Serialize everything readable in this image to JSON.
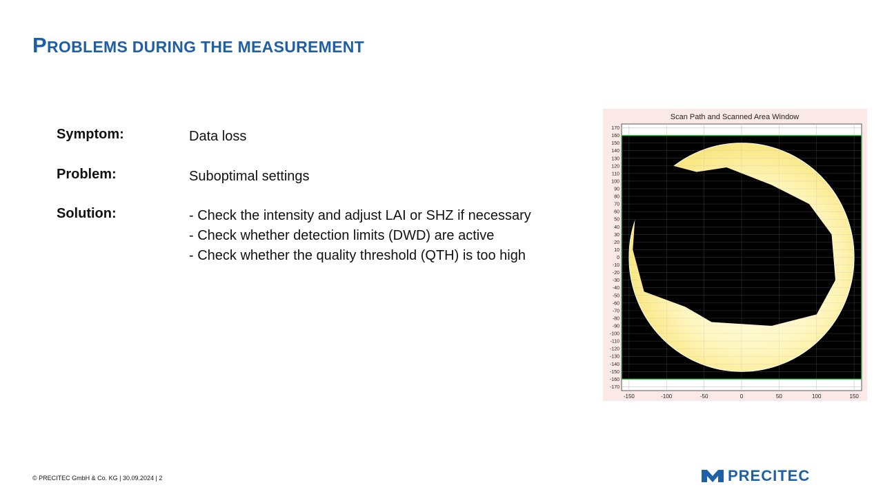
{
  "slide": {
    "title": "Problems during the measurement",
    "rows": {
      "symptom": {
        "label": "Symptom:",
        "value": "Data loss"
      },
      "problem": {
        "label": "Problem:",
        "value": "Suboptimal settings"
      },
      "solution": {
        "label": "Solution:",
        "lines": [
          "- Check the intensity and adjust LAI or SHZ if necessary",
          "- Check whether detection limits (DWD) are active",
          "- Check whether the quality threshold (QTH) is too high"
        ]
      }
    },
    "footer": "© PRECITEC GmbH & Co. KG | 30.09.2024 | 2",
    "logo_text": "PRECITEC",
    "colors": {
      "brand": "#1f5fa5",
      "plot_bg": "#fbe9e7",
      "scan_area": "#fff3a8",
      "boundary": "#2ecc40"
    }
  },
  "chart_data": {
    "type": "scatter",
    "title": "Scan Path and Scanned Area Window",
    "x_ticks": [
      "-150",
      "-100",
      "-50",
      "0",
      "50",
      "100",
      "150"
    ],
    "y_ticks": [
      "170",
      "160",
      "150",
      "140",
      "130",
      "120",
      "110",
      "100",
      "90",
      "80",
      "70",
      "60",
      "50",
      "40",
      "30",
      "20",
      "10",
      "0",
      "-10",
      "-20",
      "-30",
      "-40",
      "-50",
      "-60",
      "-70",
      "-80",
      "-90",
      "-100",
      "-110",
      "-120",
      "-130",
      "-140",
      "-150",
      "-160",
      "-170"
    ],
    "xlim": [
      -160,
      160
    ],
    "ylim": [
      -175,
      175
    ],
    "grid": true,
    "scan_window": {
      "x": [
        -160,
        160
      ],
      "y": [
        -160,
        160
      ]
    },
    "scanned_area": {
      "center": [
        0,
        0
      ],
      "radius": 150
    }
  }
}
